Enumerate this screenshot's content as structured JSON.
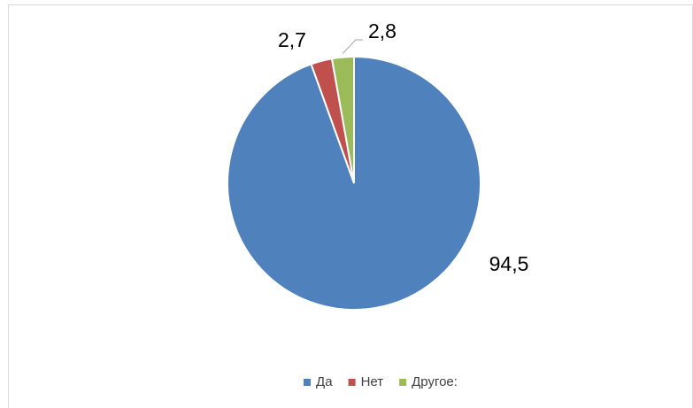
{
  "chart_data": {
    "type": "pie",
    "categories": [
      "Да",
      "Нет",
      "Другое:"
    ],
    "values": [
      94.5,
      2.7,
      2.8
    ],
    "value_labels": [
      "94,5",
      "2,7",
      "2,8"
    ],
    "colors": [
      "#4f81bd",
      "#c0504d",
      "#9bbb59"
    ],
    "legend": "bottom"
  }
}
